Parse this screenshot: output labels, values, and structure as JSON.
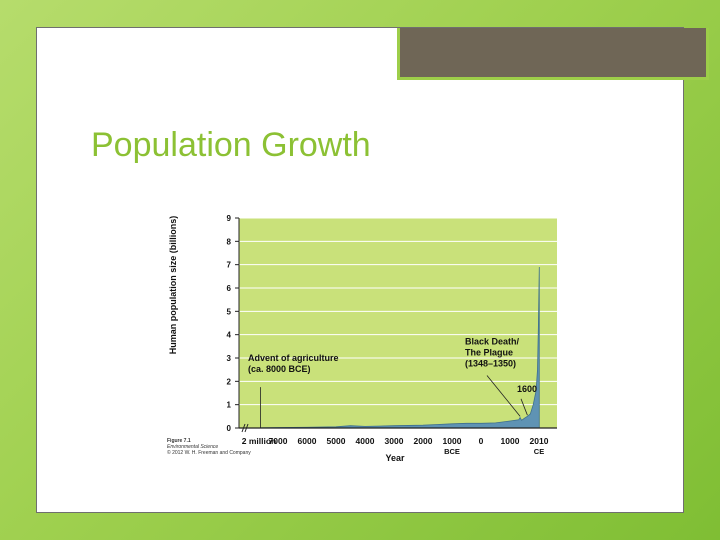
{
  "slide": {
    "title": "Population Growth",
    "caption": {
      "figure": "Figure 7.1",
      "book": "Environmental Science",
      "credit": "© 2012 W. H. Freeman and Company"
    }
  },
  "colors": {
    "background": "#9fd04f",
    "plot_bg": "#c9e17a",
    "area_fill": "#5f93b4",
    "title": "#8cc134",
    "title_box": "#6f6656"
  },
  "chart_data": {
    "type": "area",
    "title": "",
    "xlabel": "Year",
    "ylabel": "Human population size (billions)",
    "ylim": [
      0,
      9
    ],
    "yticks": [
      0,
      1,
      2,
      3,
      4,
      5,
      6,
      7,
      8,
      9
    ],
    "xticks": [
      {
        "label": "2 million",
        "sub": ""
      },
      {
        "label": "7000",
        "sub": ""
      },
      {
        "label": "6000",
        "sub": ""
      },
      {
        "label": "5000",
        "sub": ""
      },
      {
        "label": "4000",
        "sub": ""
      },
      {
        "label": "3000",
        "sub": ""
      },
      {
        "label": "2000",
        "sub": ""
      },
      {
        "label": "1000",
        "sub": "BCE"
      },
      {
        "label": "0",
        "sub": ""
      },
      {
        "label": "1000",
        "sub": ""
      },
      {
        "label": "2010",
        "sub": "CE"
      }
    ],
    "grid": true,
    "series": [
      {
        "x": [
          -8000,
          -7000,
          -6000,
          -5000,
          -4500,
          -4000,
          -3000,
          -2000,
          -1500,
          -1000,
          -500,
          0,
          500,
          1000,
          1300,
          1348,
          1400,
          1500,
          1600,
          1700,
          1800,
          1900,
          1950,
          1980,
          2000,
          2010
        ],
        "values": [
          0.01,
          0.02,
          0.03,
          0.05,
          0.1,
          0.07,
          0.1,
          0.12,
          0.15,
          0.18,
          0.2,
          0.2,
          0.22,
          0.3,
          0.35,
          0.45,
          0.33,
          0.42,
          0.5,
          0.6,
          1.0,
          1.6,
          2.5,
          4.4,
          6.1,
          6.9
        ]
      }
    ],
    "annotations": [
      {
        "id": "agri",
        "lines": [
          "Advent of agriculture",
          "(ca. 8000 BCE)"
        ],
        "x": -8000
      },
      {
        "id": "plague",
        "lines": [
          "Black Death/",
          "The Plague",
          "(1348–1350)"
        ],
        "x": 1349
      },
      {
        "id": "y1600",
        "lines": [
          "1600"
        ],
        "x": 1600
      }
    ]
  }
}
